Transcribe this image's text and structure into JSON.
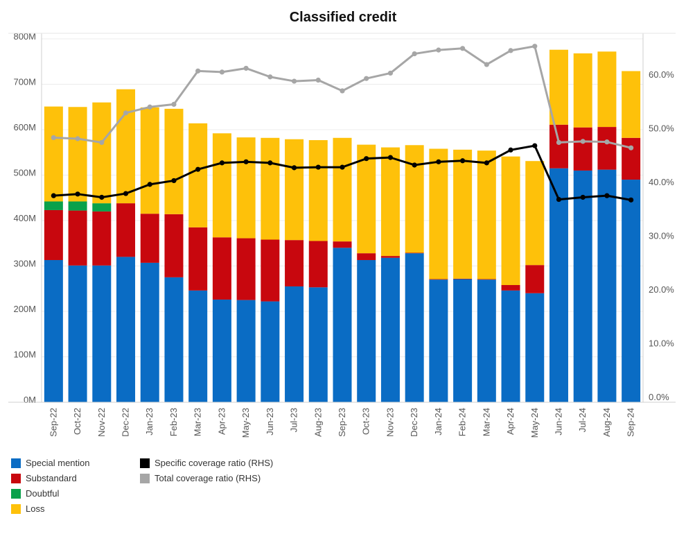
{
  "chart_data": {
    "type": "bar",
    "title": "Classified credit",
    "categories": [
      "Sep-22",
      "Oct-22",
      "Nov-22",
      "Dec-22",
      "Jan-23",
      "Feb-23",
      "Mar-23",
      "Apr-23",
      "May-23",
      "Jun-23",
      "Jul-23",
      "Aug-23",
      "Sep-23",
      "Oct-23",
      "Nov-23",
      "Dec-23",
      "Jan-24",
      "Feb-24",
      "Mar-24",
      "Apr-24",
      "May-24",
      "Jun-24",
      "Jul-24",
      "Aug-24",
      "Sep-24"
    ],
    "stacked_series": [
      {
        "name": "Special mention",
        "color": "#0a6cc4",
        "values": [
          313,
          301,
          301,
          320,
          307,
          275,
          246,
          226,
          225,
          222,
          255,
          253,
          340,
          313,
          318,
          328,
          270,
          271,
          270,
          246,
          240,
          515,
          510,
          512,
          490
        ]
      },
      {
        "name": "Substandard",
        "color": "#c8070e",
        "values": [
          110,
          121,
          119,
          118,
          108,
          139,
          139,
          137,
          136,
          136,
          102,
          102,
          14,
          15,
          4,
          1,
          1,
          1,
          1,
          12,
          62,
          96,
          95,
          94,
          92
        ]
      },
      {
        "name": "Doubtful",
        "color": "#0aa14b",
        "values": [
          19,
          20,
          18,
          0,
          0,
          0,
          0,
          0,
          0,
          0,
          0,
          0,
          0,
          0,
          0,
          0,
          0,
          0,
          0,
          0,
          0,
          0,
          0,
          0,
          0
        ]
      },
      {
        "name": "Loss",
        "color": "#fec10a",
        "values": [
          209,
          208,
          222,
          251,
          234,
          232,
          229,
          229,
          222,
          224,
          222,
          222,
          228,
          239,
          239,
          237,
          287,
          284,
          283,
          283,
          229,
          165,
          163,
          166,
          147
        ]
      }
    ],
    "line_series": [
      {
        "name": "Specific coverage ratio (RHS)",
        "color": "#000000",
        "values": [
          37.4,
          37.7,
          37.1,
          37.8,
          39.5,
          40.2,
          42.3,
          43.5,
          43.7,
          43.5,
          42.6,
          42.7,
          42.7,
          44.3,
          44.5,
          43.1,
          43.7,
          43.9,
          43.5,
          45.9,
          46.7,
          36.7,
          37.1,
          37.4,
          36.6
        ]
      },
      {
        "name": "Total coverage ratio (RHS)",
        "color": "#a6a6a6",
        "values": [
          48.2,
          48.0,
          47.3,
          52.8,
          53.9,
          54.4,
          60.6,
          60.4,
          61.1,
          59.5,
          58.7,
          58.9,
          56.9,
          59.2,
          60.2,
          63.8,
          64.5,
          64.8,
          61.8,
          64.4,
          65.2,
          47.3,
          47.5,
          47.4,
          46.3
        ]
      }
    ],
    "y_left": {
      "ticks": [
        "0M",
        "100M",
        "200M",
        "300M",
        "400M",
        "500M",
        "600M",
        "700M",
        "800M"
      ],
      "range": [
        0,
        800
      ]
    },
    "y_right": {
      "ticks": [
        "0.0%",
        "10.0%",
        "20.0%",
        "30.0%",
        "40.0%",
        "50.0%",
        "60.0%"
      ],
      "range": [
        0,
        67.4
      ]
    },
    "grid": true,
    "legend_position": "bottom-left"
  }
}
